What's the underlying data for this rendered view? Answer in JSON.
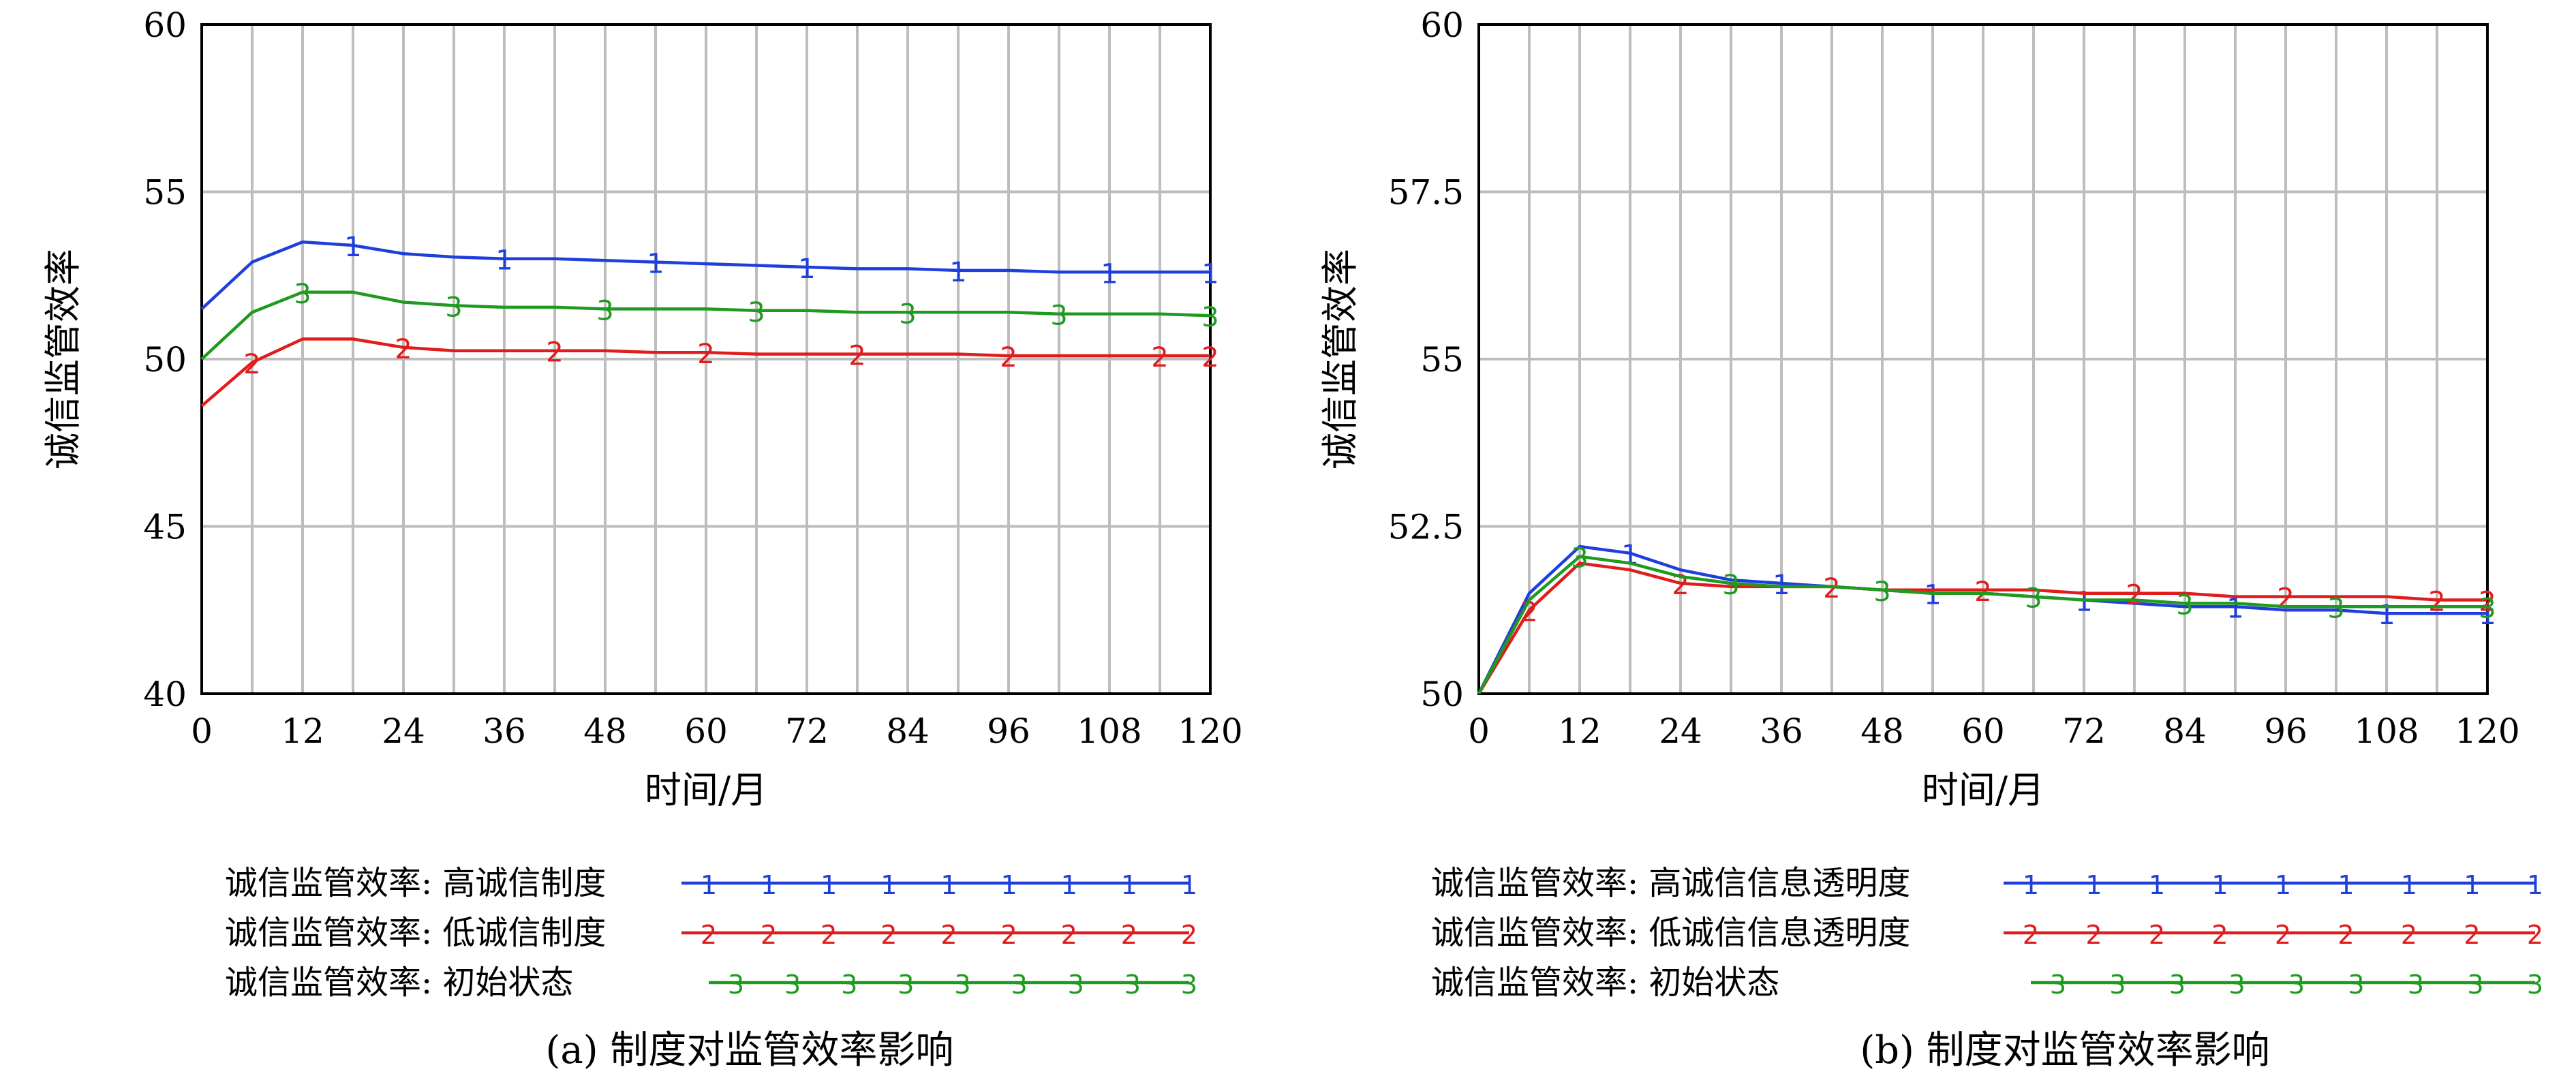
{
  "chart_data": [
    {
      "type": "line",
      "caption": "(a) 制度对监管效率影响",
      "ylabel": "诚信监管效率",
      "xlabel": "时间/月",
      "xlim": [
        0,
        120
      ],
      "ylim": [
        40,
        60
      ],
      "xticks": [
        "0",
        "12",
        "24",
        "36",
        "48",
        "60",
        "72",
        "84",
        "96",
        "108",
        "120"
      ],
      "yticks": [
        "40",
        "45",
        "50",
        "55",
        "60"
      ],
      "grid": true,
      "legend_position": "bottom",
      "x": [
        0,
        6,
        12,
        18,
        24,
        30,
        36,
        42,
        48,
        54,
        60,
        66,
        72,
        78,
        84,
        90,
        96,
        102,
        108,
        114,
        120
      ],
      "series": [
        {
          "name": "诚信监管效率: 高诚信制度",
          "marker": "1",
          "color": "#1f3fdd",
          "values": [
            51.5,
            52.9,
            53.5,
            53.4,
            53.15,
            53.05,
            53.0,
            53.0,
            52.95,
            52.9,
            52.85,
            52.8,
            52.75,
            52.7,
            52.7,
            52.65,
            52.65,
            52.6,
            52.6,
            52.6,
            52.6
          ]
        },
        {
          "name": "诚信监管效率: 低诚信制度",
          "marker": "2",
          "color": "#e01c1c",
          "values": [
            48.6,
            49.9,
            50.6,
            50.6,
            50.35,
            50.25,
            50.25,
            50.25,
            50.25,
            50.2,
            50.2,
            50.15,
            50.15,
            50.15,
            50.15,
            50.15,
            50.1,
            50.1,
            50.1,
            50.1,
            50.1
          ]
        },
        {
          "name": "诚信监管效率: 初始状态",
          "marker": "3",
          "color": "#1f9a1f",
          "values": [
            50.0,
            51.4,
            52.0,
            52.0,
            51.7,
            51.6,
            51.55,
            51.55,
            51.5,
            51.5,
            51.5,
            51.45,
            51.45,
            51.4,
            51.4,
            51.4,
            51.4,
            51.35,
            51.35,
            51.35,
            51.3
          ]
        }
      ]
    },
    {
      "type": "line",
      "caption": "(b) 制度对监管效率影响",
      "ylabel": "诚信监管效率",
      "xlabel": "时间/月",
      "xlim": [
        0,
        120
      ],
      "ylim": [
        50,
        60
      ],
      "xticks": [
        "0",
        "12",
        "24",
        "36",
        "48",
        "60",
        "72",
        "84",
        "96",
        "108",
        "120"
      ],
      "yticks": [
        "50",
        "52.5",
        "55",
        "57.5",
        "60"
      ],
      "grid": true,
      "legend_position": "bottom",
      "x": [
        0,
        6,
        12,
        18,
        24,
        30,
        36,
        42,
        48,
        54,
        60,
        66,
        72,
        78,
        84,
        90,
        96,
        102,
        108,
        114,
        120
      ],
      "series": [
        {
          "name": "诚信监管效率: 高诚信信息透明度",
          "marker": "1",
          "color": "#1f3fdd",
          "values": [
            50.0,
            51.5,
            52.2,
            52.1,
            51.85,
            51.7,
            51.65,
            51.6,
            51.55,
            51.5,
            51.5,
            51.45,
            51.4,
            51.35,
            51.3,
            51.3,
            51.25,
            51.25,
            51.2,
            51.2,
            51.2
          ]
        },
        {
          "name": "诚信监管效率: 低诚信信息透明度",
          "marker": "2",
          "color": "#e01c1c",
          "values": [
            50.0,
            51.25,
            51.95,
            51.85,
            51.65,
            51.6,
            51.6,
            51.6,
            51.55,
            51.55,
            51.55,
            51.55,
            51.5,
            51.5,
            51.5,
            51.45,
            51.45,
            51.45,
            51.45,
            51.4,
            51.4
          ]
        },
        {
          "name": "诚信监管效率: 初始状态",
          "marker": "3",
          "color": "#1f9a1f",
          "values": [
            50.0,
            51.4,
            52.05,
            51.95,
            51.75,
            51.65,
            51.6,
            51.6,
            51.55,
            51.5,
            51.5,
            51.45,
            51.4,
            51.4,
            51.35,
            51.35,
            51.3,
            51.3,
            51.3,
            51.3,
            51.3
          ]
        }
      ]
    }
  ]
}
